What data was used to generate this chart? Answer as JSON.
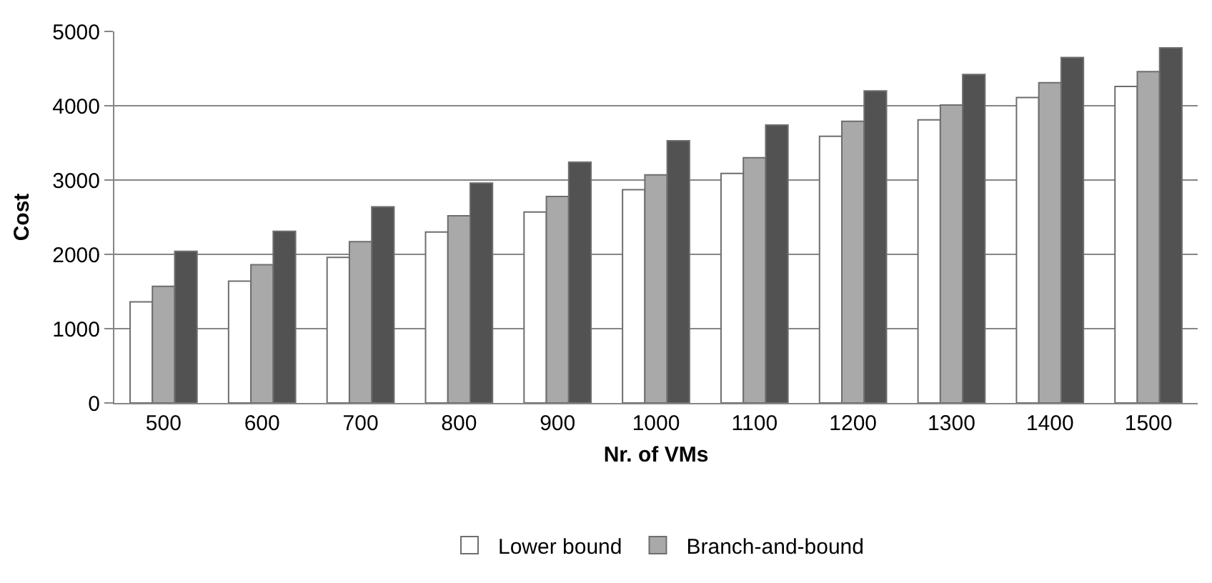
{
  "chart_data": {
    "type": "bar",
    "xlabel": "Nr. of VMs",
    "ylabel": "Cost",
    "categories": [
      "500",
      "600",
      "700",
      "800",
      "900",
      "1000",
      "1100",
      "1200",
      "1300",
      "1400",
      "1500"
    ],
    "series": [
      {
        "name": "Lower bound",
        "color": "#ffffff",
        "values": [
          1360,
          1640,
          1960,
          2300,
          2570,
          2870,
          3090,
          3590,
          3810,
          4110,
          4260
        ]
      },
      {
        "name": "Branch-and-bound",
        "color": "#a9a9a9",
        "values": [
          1570,
          1860,
          2170,
          2520,
          2780,
          3070,
          3300,
          3790,
          4010,
          4310,
          4460
        ]
      },
      {
        "color": "#525252",
        "values": [
          2040,
          2310,
          2640,
          2960,
          3240,
          3530,
          3740,
          4200,
          4420,
          4650,
          4780
        ]
      }
    ],
    "ylim": [
      0,
      5000
    ],
    "yticks": [
      0,
      1000,
      2000,
      3000,
      4000,
      5000
    ],
    "grid": "y",
    "legend": "bottom"
  }
}
